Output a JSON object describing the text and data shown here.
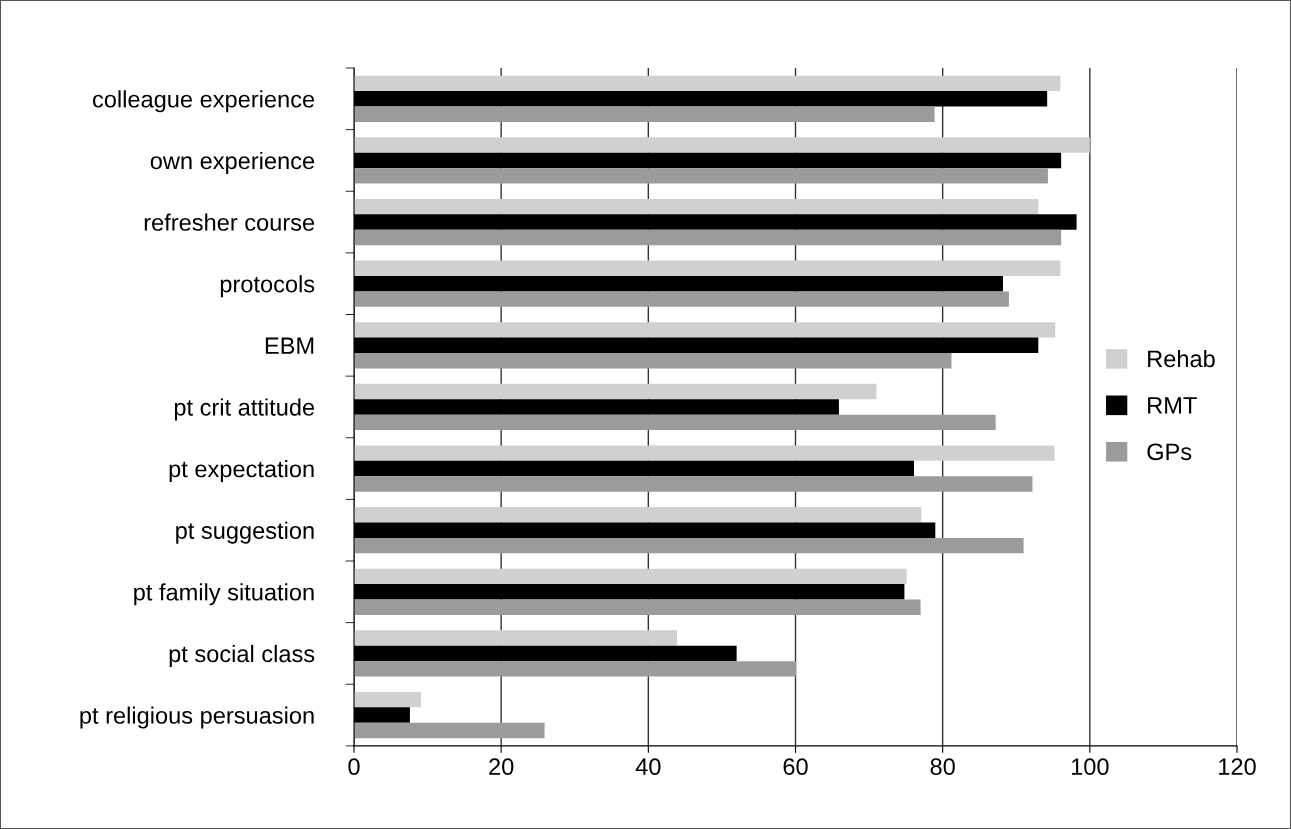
{
  "chart_data": {
    "type": "bar",
    "orientation": "horizontal",
    "categories": [
      "colleague experience",
      "own experience",
      "refresher course",
      "protocols",
      "EBM",
      "pt crit attitude",
      "pt expectation",
      "pt suggestion",
      "pt family situation",
      "pt social class",
      "pt religious persuasion"
    ],
    "series": [
      {
        "name": "Rehab",
        "color": "#d0d0d2",
        "values": [
          96.0,
          100,
          93.0,
          96.0,
          95.3,
          71.0,
          95.2,
          77.1,
          75.1,
          43.9,
          9.1
        ]
      },
      {
        "name": "RMT",
        "color": "#000000",
        "values": [
          94.2,
          96.1,
          98.2,
          88.2,
          93.0,
          65.9,
          76.1,
          79.0,
          74.8,
          52.0,
          7.6
        ]
      },
      {
        "name": "GPs",
        "color": "#9b9b9d",
        "values": [
          78.9,
          94.3,
          96.1,
          89.0,
          81.2,
          87.2,
          92.2,
          91.0,
          77.0,
          60.1,
          25.9
        ]
      }
    ],
    "xlim": [
      0,
      120
    ],
    "xticks": [
      0,
      20,
      40,
      60,
      80,
      100,
      120
    ],
    "grid": "x",
    "legend": "right"
  }
}
